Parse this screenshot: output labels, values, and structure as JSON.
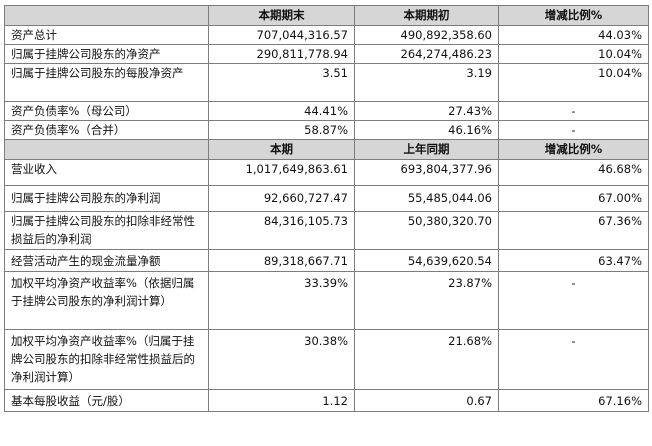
{
  "header1": [
    "",
    "本期期末",
    "本期期初",
    "增减比例%"
  ],
  "rows1": [
    {
      "label": "资产总计",
      "a": "707,044,316.57",
      "b": "490,892,358.60",
      "c": "44.03%"
    },
    {
      "label": "归属于挂牌公司股东的净资产",
      "a": "290,811,778.94",
      "b": "264,274,486.23",
      "c": "10.04%"
    },
    {
      "label": "归属于挂牌公司股东的每股净资产",
      "a": "3.51",
      "b": "3.19",
      "c": "10.04%"
    },
    {
      "label": "资产负债率%（母公司）",
      "a": "44.41%",
      "b": "27.43%",
      "c": "-"
    },
    {
      "label": "资产负债率%（合并）",
      "a": "58.87%",
      "b": "46.16%",
      "c": "-"
    }
  ],
  "header2": [
    "",
    "本期",
    "上年同期",
    "增减比例%"
  ],
  "rows2": [
    {
      "label": "营业收入",
      "a": "1,017,649,863.61",
      "b": "693,804,377.96",
      "c": "46.68%"
    },
    {
      "label": "归属于挂牌公司股东的净利润",
      "a": "92,660,727.47",
      "b": "55,485,044.06",
      "c": "67.00%"
    },
    {
      "label": "归属于挂牌公司股东的扣除非经常性损益后的净利润",
      "a": "84,316,105.73",
      "b": "50,380,320.70",
      "c": "67.36%"
    },
    {
      "label": "经营活动产生的现金流量净额",
      "a": "89,318,667.71",
      "b": "54,639,620.54",
      "c": "63.47%"
    },
    {
      "label": "加权平均净资产收益率%（依据归属于挂牌公司股东的净利润计算）",
      "a": "33.39%",
      "b": "23.87%",
      "c": "-"
    },
    {
      "label": "加权平均净资产收益率%（归属于挂牌公司股东的扣除非经常性损益后的净利润计算）",
      "a": "30.38%",
      "b": "21.68%",
      "c": "-"
    },
    {
      "label": "基本每股收益（元/股）",
      "a": "1.12",
      "b": "0.67",
      "c": "67.16%"
    }
  ]
}
